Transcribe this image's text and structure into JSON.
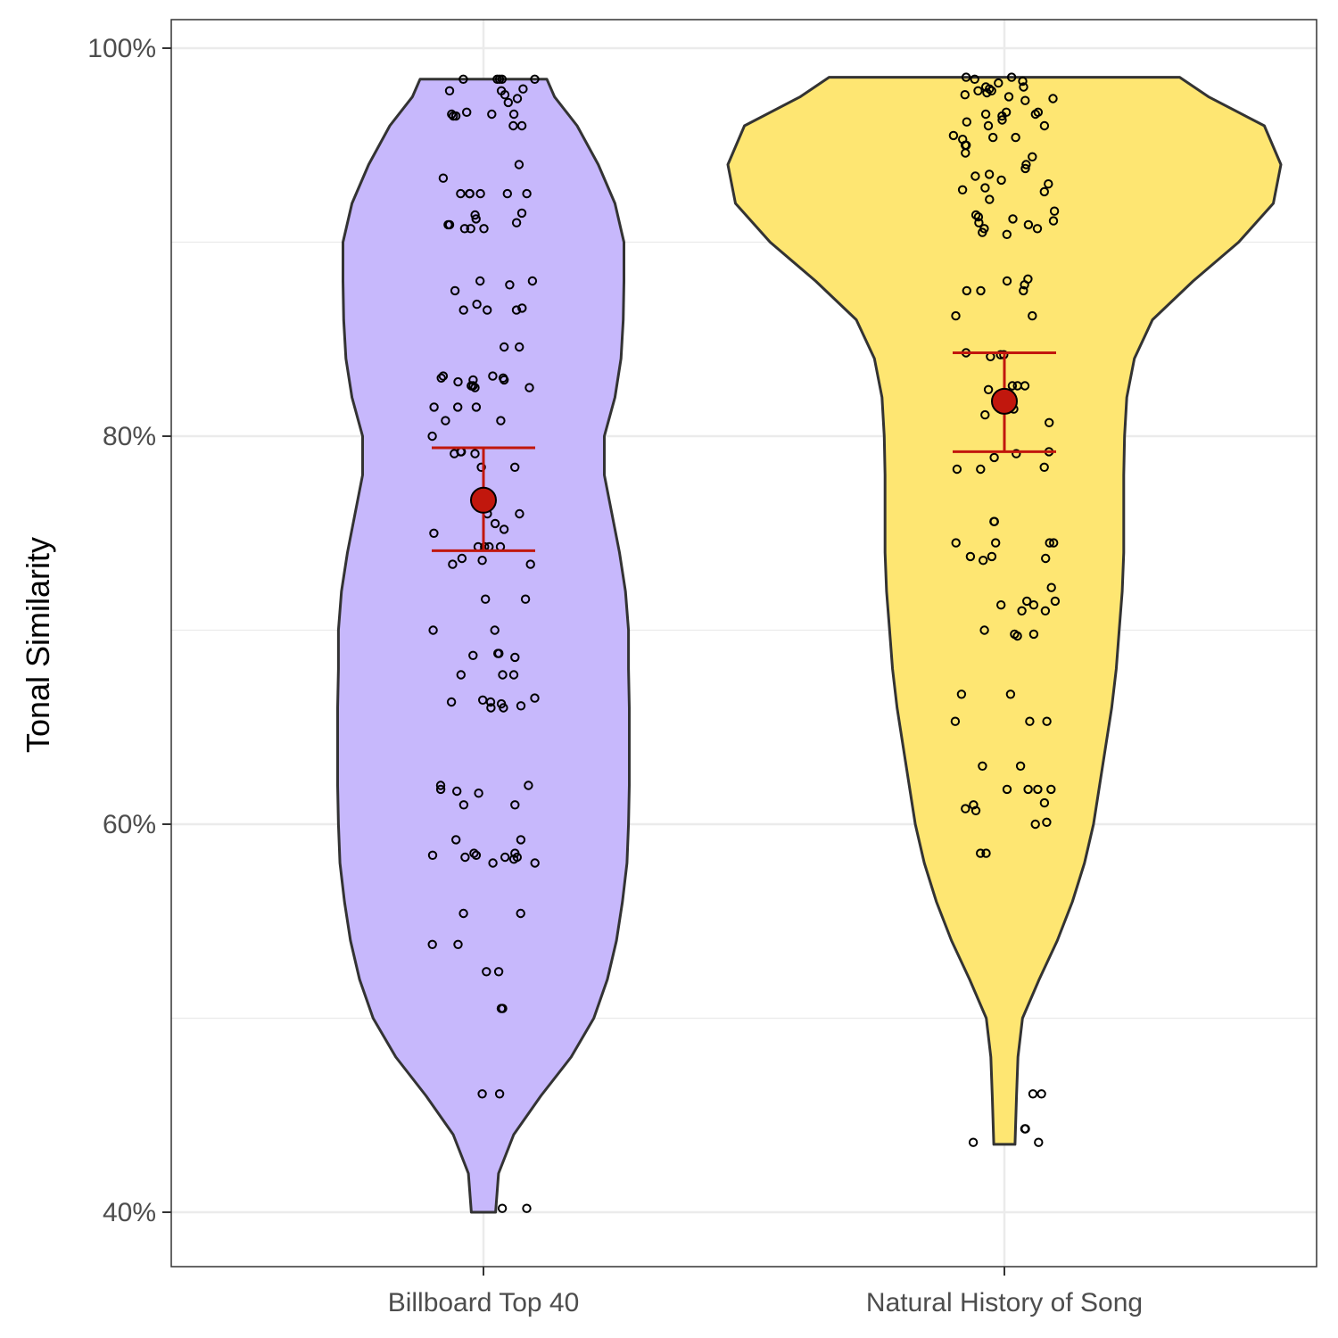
{
  "chart_data": {
    "type": "violin",
    "title": "",
    "xlabel": "",
    "ylabel": "Tonal Similarity",
    "ylim": [
      0.37,
      1.01
    ],
    "y_ticks": [
      {
        "value": 1.0,
        "label": "100%"
      },
      {
        "value": 0.8,
        "label": "80%"
      },
      {
        "value": 0.6,
        "label": "60%"
      },
      {
        "value": 0.4,
        "label": "40%"
      }
    ],
    "y_minor_gridlines": [
      0.9,
      0.7,
      0.5
    ],
    "grid": true,
    "colors": {
      "outline": "#333333",
      "mean_marker": "#c1170d",
      "error_bar": "#c1170d",
      "gridline": "#ebebeb"
    },
    "categories": [
      {
        "name": "Billboard Top 40",
        "fill": "#c7b8fc",
        "mean": 0.767,
        "ci": [
          0.741,
          0.794
        ],
        "violin_max": 0.984,
        "violin_min": 0.4,
        "density": [
          [
            0.4,
            0.08
          ],
          [
            0.42,
            0.1
          ],
          [
            0.44,
            0.2
          ],
          [
            0.46,
            0.38
          ],
          [
            0.48,
            0.58
          ],
          [
            0.5,
            0.73
          ],
          [
            0.52,
            0.82
          ],
          [
            0.54,
            0.88
          ],
          [
            0.56,
            0.92
          ],
          [
            0.58,
            0.95
          ],
          [
            0.6,
            0.96
          ],
          [
            0.62,
            0.965
          ],
          [
            0.64,
            0.965
          ],
          [
            0.66,
            0.965
          ],
          [
            0.68,
            0.96
          ],
          [
            0.7,
            0.96
          ],
          [
            0.72,
            0.94
          ],
          [
            0.74,
            0.9
          ],
          [
            0.76,
            0.85
          ],
          [
            0.78,
            0.8
          ],
          [
            0.8,
            0.8
          ],
          [
            0.82,
            0.87
          ],
          [
            0.84,
            0.91
          ],
          [
            0.86,
            0.925
          ],
          [
            0.88,
            0.93
          ],
          [
            0.9,
            0.93
          ],
          [
            0.92,
            0.87
          ],
          [
            0.94,
            0.76
          ],
          [
            0.96,
            0.62
          ],
          [
            0.975,
            0.47
          ],
          [
            0.984,
            0.42
          ]
        ],
        "points": [
          0.984,
          0.984,
          0.984,
          0.984,
          0.984,
          0.978,
          0.978,
          0.979,
          0.976,
          0.974,
          0.972,
          0.967,
          0.966,
          0.966,
          0.966,
          0.965,
          0.965,
          0.96,
          0.96,
          0.94,
          0.933,
          0.925,
          0.925,
          0.925,
          0.925,
          0.925,
          0.925,
          0.915,
          0.914,
          0.912,
          0.91,
          0.909,
          0.909,
          0.907,
          0.907,
          0.907,
          0.88,
          0.88,
          0.878,
          0.875,
          0.868,
          0.866,
          0.865,
          0.865,
          0.865,
          0.846,
          0.846,
          0.831,
          0.831,
          0.83,
          0.83,
          0.829,
          0.829,
          0.828,
          0.826,
          0.826,
          0.825,
          0.825,
          0.815,
          0.815,
          0.815,
          0.808,
          0.808,
          0.8,
          0.792,
          0.792,
          0.791,
          0.791,
          0.784,
          0.784,
          0.76,
          0.76,
          0.755,
          0.752,
          0.75,
          0.743,
          0.743,
          0.743,
          0.743,
          0.737,
          0.736,
          0.734,
          0.734,
          0.716,
          0.716,
          0.7,
          0.7,
          0.688,
          0.688,
          0.687,
          0.686,
          0.677,
          0.677,
          0.677,
          0.665,
          0.664,
          0.663,
          0.663,
          0.662,
          0.661,
          0.66,
          0.66,
          0.62,
          0.62,
          0.618,
          0.617,
          0.616,
          0.61,
          0.61,
          0.592,
          0.592,
          0.585,
          0.585,
          0.584,
          0.584,
          0.583,
          0.583,
          0.583,
          0.582,
          0.58,
          0.58,
          0.554,
          0.554,
          0.538,
          0.538,
          0.524,
          0.524,
          0.505,
          0.505,
          0.461,
          0.461,
          0.402,
          0.402
        ]
      },
      {
        "name": "Natural History of Song",
        "fill": "#fee672",
        "mean": 0.818,
        "ci": [
          0.792,
          0.843
        ],
        "violin_max": 0.985,
        "violin_min": 0.435,
        "density": [
          [
            0.435,
            0.07
          ],
          [
            0.46,
            0.08
          ],
          [
            0.48,
            0.09
          ],
          [
            0.5,
            0.12
          ],
          [
            0.52,
            0.23
          ],
          [
            0.54,
            0.35
          ],
          [
            0.56,
            0.45
          ],
          [
            0.58,
            0.53
          ],
          [
            0.6,
            0.59
          ],
          [
            0.62,
            0.63
          ],
          [
            0.64,
            0.67
          ],
          [
            0.66,
            0.71
          ],
          [
            0.68,
            0.74
          ],
          [
            0.7,
            0.76
          ],
          [
            0.72,
            0.78
          ],
          [
            0.74,
            0.79
          ],
          [
            0.76,
            0.79
          ],
          [
            0.78,
            0.79
          ],
          [
            0.8,
            0.795
          ],
          [
            0.82,
            0.81
          ],
          [
            0.84,
            0.86
          ],
          [
            0.86,
            0.98
          ],
          [
            0.88,
            1.25
          ],
          [
            0.9,
            1.55
          ],
          [
            0.92,
            1.78
          ],
          [
            0.94,
            1.83
          ],
          [
            0.96,
            1.72
          ],
          [
            0.975,
            1.35
          ],
          [
            0.985,
            1.16
          ]
        ],
        "points": [
          0.985,
          0.985,
          0.984,
          0.983,
          0.982,
          0.98,
          0.98,
          0.979,
          0.978,
          0.978,
          0.977,
          0.976,
          0.975,
          0.974,
          0.973,
          0.967,
          0.967,
          0.966,
          0.966,
          0.965,
          0.963,
          0.962,
          0.96,
          0.96,
          0.955,
          0.954,
          0.954,
          0.953,
          0.95,
          0.95,
          0.946,
          0.944,
          0.94,
          0.938,
          0.935,
          0.934,
          0.932,
          0.93,
          0.928,
          0.927,
          0.926,
          0.922,
          0.916,
          0.914,
          0.913,
          0.912,
          0.911,
          0.91,
          0.909,
          0.907,
          0.907,
          0.905,
          0.904,
          0.881,
          0.88,
          0.878,
          0.875,
          0.875,
          0.875,
          0.862,
          0.862,
          0.843,
          0.842,
          0.842,
          0.841,
          0.826,
          0.826,
          0.826,
          0.824,
          0.818,
          0.816,
          0.814,
          0.811,
          0.807,
          0.792,
          0.791,
          0.789,
          0.784,
          0.783,
          0.783,
          0.756,
          0.756,
          0.745,
          0.745,
          0.745,
          0.745,
          0.738,
          0.738,
          0.737,
          0.736,
          0.722,
          0.715,
          0.715,
          0.713,
          0.713,
          0.71,
          0.71,
          0.7,
          0.698,
          0.698,
          0.697,
          0.667,
          0.667,
          0.653,
          0.653,
          0.653,
          0.63,
          0.63,
          0.618,
          0.618,
          0.618,
          0.618,
          0.611,
          0.61,
          0.608,
          0.607,
          0.601,
          0.6,
          0.585,
          0.585,
          0.461,
          0.461,
          0.443,
          0.443,
          0.436,
          0.436
        ]
      }
    ]
  }
}
